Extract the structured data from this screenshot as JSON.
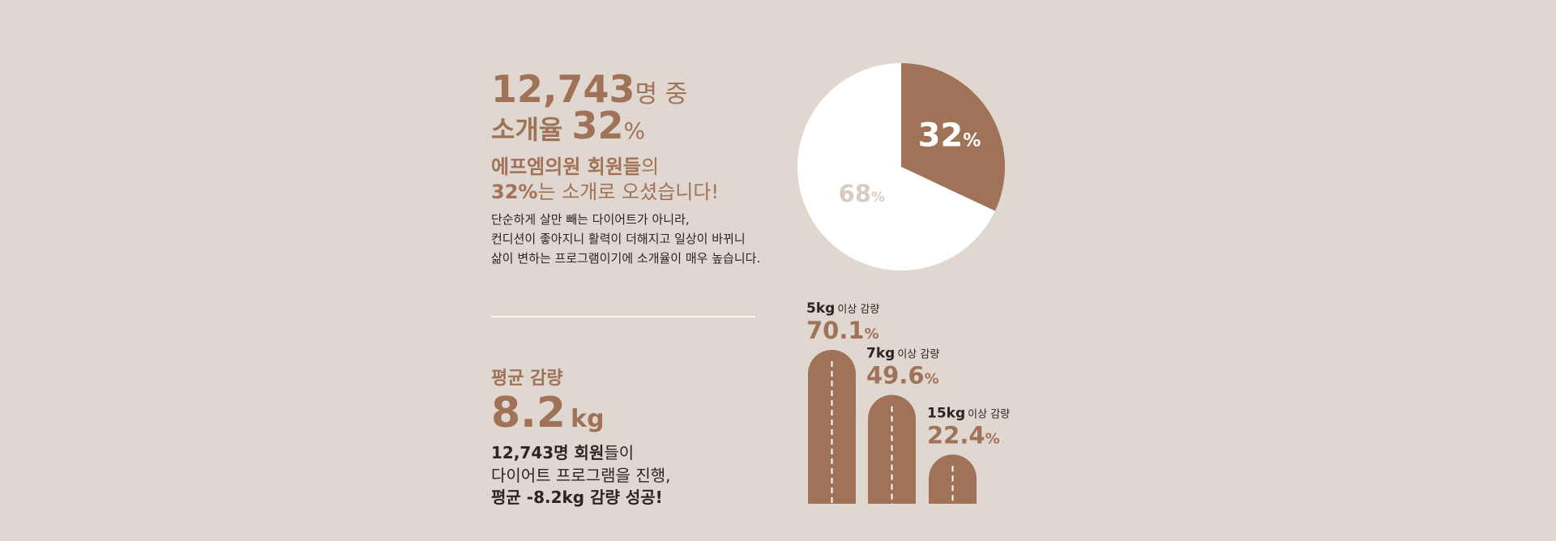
{
  "intro": {
    "headline": {
      "count": "12,743",
      "count_suffix": "명 중",
      "rate_prefix": "소개율 ",
      "rate": "32",
      "rate_unit": "%"
    },
    "subheadline": {
      "line1_bold": "에프엠의원 회원들",
      "line1_rest": "의",
      "line2_bold": "32%",
      "line2_rest": "는 소개로 오셨습니다!"
    },
    "body": [
      "단순하게 살만 빼는 다이어트가 아니라,",
      "컨디션이 좋아지니 활력이 더해지고  일상이 바뀌니",
      "삶이 변하는 프로그램이기에 소개율이 매우 높습니다."
    ]
  },
  "summary": {
    "label": "평균 감량",
    "value": "8.2",
    "unit": "kg",
    "lines": [
      {
        "bold": "12,743명 회원",
        "rest": "들이"
      },
      {
        "rest": "다이어트 프로그램을 진행,"
      },
      {
        "bold": "평균 -8.2kg 감량 성공!"
      }
    ]
  },
  "chart_data": [
    {
      "type": "pie",
      "values": [
        32,
        68
      ],
      "unit": "%",
      "colors": [
        "#a07358",
        "#ffffff"
      ],
      "label_colors": [
        "#ffffff",
        "#d8cbc1"
      ]
    },
    {
      "type": "bar",
      "categories": [
        "5kg",
        "7kg",
        "15kg"
      ],
      "category_suffix": "이상 감량",
      "values": [
        70.1,
        49.6,
        22.4
      ],
      "unit": "%",
      "color": "#a07358",
      "ylim": [
        0,
        75
      ]
    }
  ]
}
